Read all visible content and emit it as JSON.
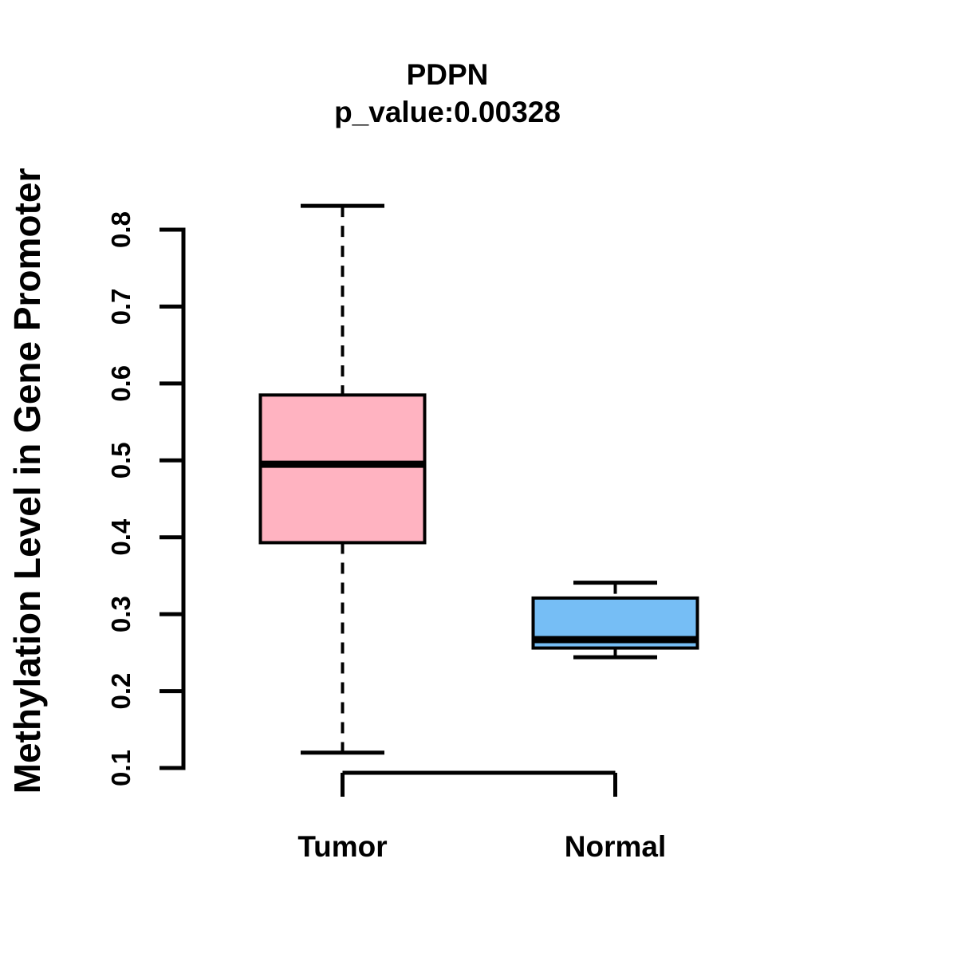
{
  "chart_data": {
    "type": "boxplot",
    "title": "PDPN",
    "subtitle": "p_value:0.00328",
    "ylabel": "Methylation Level in Gene Promoter",
    "xlabel": "",
    "categories": [
      "Tumor",
      "Normal"
    ],
    "yticks": [
      0.1,
      0.2,
      0.3,
      0.4,
      0.5,
      0.6,
      0.7,
      0.8
    ],
    "ylim": [
      0.1,
      0.8
    ],
    "grid": false,
    "legend": "none",
    "line_color": "#000000",
    "series": [
      {
        "name": "Tumor",
        "color": "#FFB3C1",
        "whisker_low": 0.12,
        "q1": 0.393,
        "median": 0.495,
        "q3": 0.585,
        "whisker_high": 0.831
      },
      {
        "name": "Normal",
        "color": "#76BEF5",
        "whisker_low": 0.244,
        "q1": 0.256,
        "median": 0.267,
        "q3": 0.321,
        "whisker_high": 0.341
      }
    ]
  }
}
